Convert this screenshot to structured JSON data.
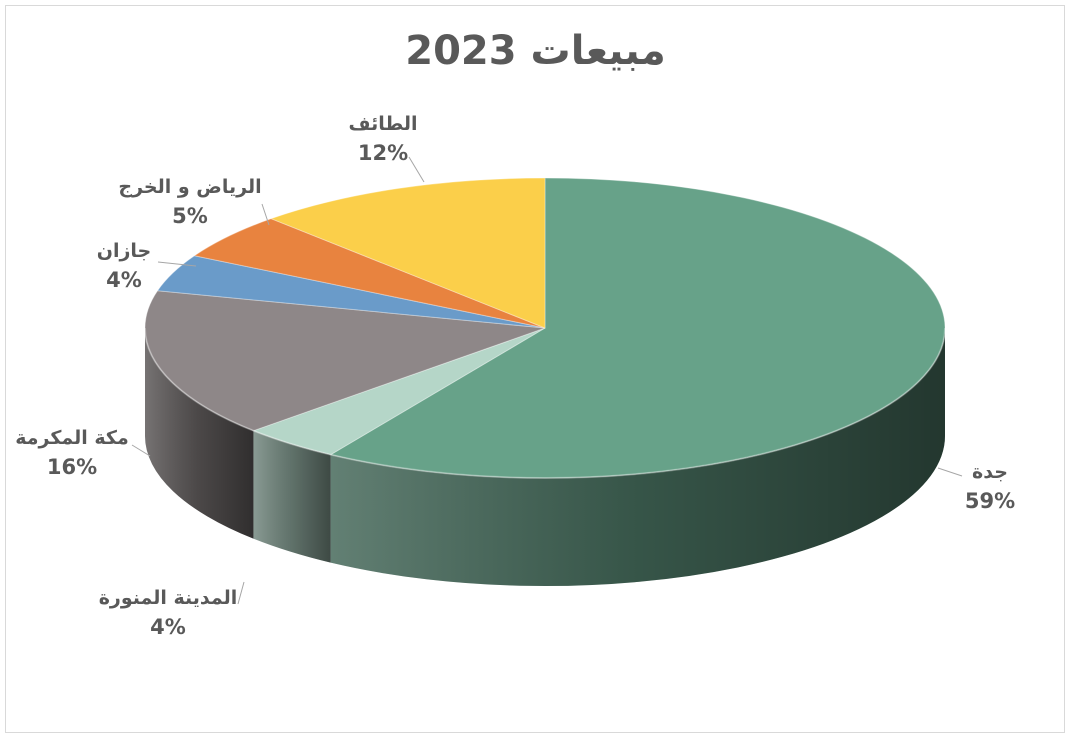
{
  "chart_data": {
    "type": "pie",
    "title": "مبيعات 2023",
    "categories": [
      "جدة",
      "المدينة المنورة",
      "مكة المكرمة",
      "جازان",
      "الرياض و الخرج",
      "الطائف"
    ],
    "values": [
      59,
      4,
      16,
      4,
      5,
      12
    ],
    "percent_labels": [
      "59%",
      "4%",
      "16%",
      "4%",
      "5%",
      "12%"
    ],
    "colors": [
      "#67A289",
      "#B5D6C8",
      "#8E8788",
      "#6A9BC9",
      "#E8833F",
      "#FBCF4A"
    ],
    "legend": "none",
    "style": "3d"
  }
}
